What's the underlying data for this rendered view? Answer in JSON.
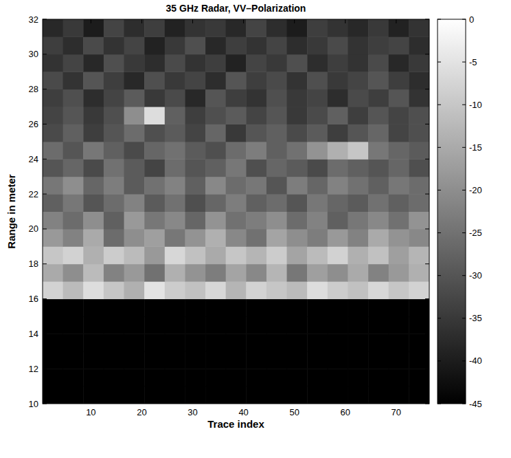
{
  "chart_data": {
    "type": "heatmap",
    "title": "35 GHz Radar, VV–Polarization",
    "x_label": "Trace index",
    "y_label": "Range in meter",
    "x": [
      2.5,
      6.5,
      10.5,
      14.5,
      18.5,
      22.5,
      26.5,
      30.5,
      34.5,
      38.5,
      42.5,
      46.5,
      50.5,
      54.5,
      58.5,
      62.5,
      66.5,
      70.5,
      74.5
    ],
    "y": [
      10.5,
      11.5,
      12.5,
      13.5,
      14.5,
      15.5,
      16.5,
      17.5,
      18.5,
      19.5,
      20.5,
      21.5,
      22.5,
      23.5,
      24.5,
      25.5,
      26.5,
      27.5,
      28.5,
      29.5,
      30.5,
      31.5
    ],
    "cells": [
      [
        -45,
        -45,
        -45,
        -45,
        -45,
        -45,
        -45,
        -45,
        -45,
        -45,
        -45,
        -45,
        -45,
        -45,
        -45,
        -45,
        -45,
        -45,
        -45
      ],
      [
        -45,
        -45,
        -45,
        -45,
        -45,
        -45,
        -45,
        -45,
        -45,
        -45,
        -45,
        -45,
        -45,
        -45,
        -45,
        -45,
        -45,
        -45,
        -45
      ],
      [
        -45,
        -45,
        -45,
        -45,
        -45,
        -45,
        -45,
        -45,
        -45,
        -45,
        -45,
        -45,
        -45,
        -45,
        -45,
        -45,
        -45,
        -45,
        -45
      ],
      [
        -45,
        -45,
        -45,
        -45,
        -45,
        -45,
        -45,
        -45,
        -45,
        -45,
        -45,
        -45,
        -45,
        -45,
        -45,
        -45,
        -45,
        -45,
        -45
      ],
      [
        -45,
        -45,
        -45,
        -45,
        -45,
        -45,
        -45,
        -45,
        -45,
        -45,
        -45,
        -45,
        -45,
        -45,
        -45,
        -45,
        -45,
        -45,
        -45
      ],
      [
        -45,
        -45,
        -45,
        -45,
        -45,
        -45,
        -45,
        -45,
        -45,
        -45,
        -45,
        -45,
        -45,
        -45,
        -45,
        -45,
        -45,
        -45,
        -45
      ],
      [
        -8,
        -12,
        -6,
        -10,
        -14,
        -5,
        -9,
        -11,
        -7,
        -13,
        -8,
        -10,
        -12,
        -6,
        -9,
        -11,
        -7,
        -10,
        -8
      ],
      [
        -15,
        -20,
        -12,
        -22,
        -18,
        -25,
        -14,
        -19,
        -23,
        -16,
        -21,
        -13,
        -24,
        -17,
        -20,
        -15,
        -22,
        -18,
        -14
      ],
      [
        -10,
        -8,
        -14,
        -9,
        -12,
        -18,
        -7,
        -11,
        -15,
        -10,
        -13,
        -9,
        -16,
        -12,
        -8,
        -14,
        -11,
        -17,
        -13
      ],
      [
        -18,
        -22,
        -15,
        -26,
        -20,
        -17,
        -24,
        -19,
        -14,
        -21,
        -25,
        -16,
        -20,
        -23,
        -18,
        -22,
        -15,
        -19,
        -21
      ],
      [
        -22,
        -26,
        -20,
        -28,
        -18,
        -24,
        -21,
        -27,
        -19,
        -25,
        -23,
        -20,
        -26,
        -22,
        -28,
        -24,
        -21,
        -25,
        -19
      ],
      [
        -28,
        -24,
        -30,
        -26,
        -22,
        -29,
        -25,
        -31,
        -27,
        -23,
        -28,
        -26,
        -30,
        -24,
        -27,
        -29,
        -25,
        -28,
        -26
      ],
      [
        -24,
        -20,
        -27,
        -23,
        -29,
        -25,
        -22,
        -28,
        -21,
        -26,
        -24,
        -30,
        -23,
        -27,
        -22,
        -25,
        -28,
        -24,
        -26
      ],
      [
        -30,
        -27,
        -32,
        -25,
        -29,
        -33,
        -26,
        -30,
        -28,
        -24,
        -31,
        -27,
        -29,
        -32,
        -26,
        -28,
        -30,
        -27,
        -31
      ],
      [
        -26,
        -30,
        -24,
        -28,
        -32,
        -27,
        -25,
        -29,
        -31,
        -26,
        -23,
        -28,
        -25,
        -19,
        -14,
        -10,
        -24,
        -27,
        -29
      ],
      [
        -32,
        -28,
        -34,
        -30,
        -26,
        -31,
        -29,
        -33,
        -27,
        -35,
        -30,
        -28,
        -32,
        -29,
        -34,
        -30,
        -27,
        -33,
        -31
      ],
      [
        -33,
        -30,
        -35,
        -31,
        -20,
        -6,
        -28,
        -34,
        -31,
        -29,
        -33,
        -30,
        -35,
        -32,
        -28,
        -34,
        -30,
        -33,
        -31
      ],
      [
        -34,
        -31,
        -37,
        -33,
        -29,
        -35,
        -32,
        -38,
        -30,
        -34,
        -36,
        -31,
        -35,
        -33,
        -37,
        -32,
        -34,
        -30,
        -36
      ],
      [
        -32,
        -36,
        -30,
        -34,
        -38,
        -31,
        -35,
        -33,
        -37,
        -30,
        -34,
        -32,
        -36,
        -31,
        -35,
        -33,
        -30,
        -34,
        -37
      ],
      [
        -36,
        -33,
        -38,
        -31,
        -35,
        -37,
        -32,
        -36,
        -34,
        -39,
        -33,
        -35,
        -31,
        -37,
        -34,
        -36,
        -32,
        -38,
        -35
      ],
      [
        -34,
        -37,
        -32,
        -36,
        -33,
        -39,
        -35,
        -31,
        -38,
        -34,
        -36,
        -33,
        -37,
        -35,
        -32,
        -36,
        -34,
        -33,
        -37
      ],
      [
        -38,
        -35,
        -40,
        -33,
        -37,
        -34,
        -39,
        -36,
        -35,
        -38,
        -33,
        -37,
        -40,
        -34,
        -36,
        -38,
        -35,
        -39,
        -36
      ]
    ],
    "xlim": [
      0.5,
      76.5
    ],
    "ylim": [
      10,
      32
    ],
    "xticks": [
      10,
      20,
      30,
      40,
      50,
      60,
      70
    ],
    "yticks": [
      10,
      12,
      14,
      16,
      18,
      20,
      22,
      24,
      26,
      28,
      30,
      32
    ],
    "colorbar_range": [
      -45,
      0
    ],
    "colorbar_ticks": [
      0,
      -5,
      -10,
      -15,
      -20,
      -25,
      -30,
      -35,
      -40,
      -45
    ]
  }
}
